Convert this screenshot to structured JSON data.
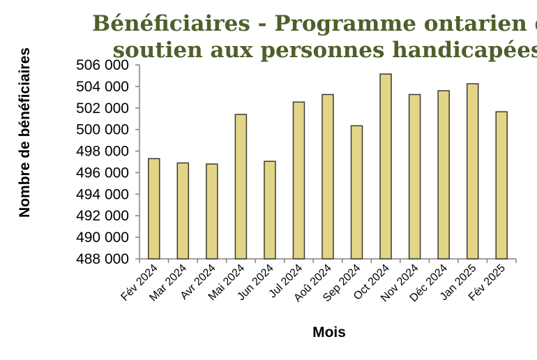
{
  "chart_data": {
    "type": "bar",
    "title_lines": [
      "Bénéficiaires - Programme ontarien de",
      "soutien aux personnes handicapées"
    ],
    "xlabel": "Mois",
    "ylabel": "Nombre de bénéficiaires",
    "categories": [
      "Fév 2024",
      "Mar 2024",
      "Avr 2024",
      "Mai 2024",
      "Jun 2024",
      "Jul 2024",
      "Aoû 2024",
      "Sep 2024",
      "Oct 2024",
      "Nov 2024",
      "Déc 2024",
      "Jan 2025",
      "Fév 2025"
    ],
    "values": [
      497300,
      496900,
      496800,
      501400,
      497050,
      502550,
      503250,
      500350,
      505150,
      503250,
      503600,
      504250,
      501650
    ],
    "ylim": [
      488000,
      506000
    ],
    "yticks": [
      488000,
      490000,
      492000,
      494000,
      496000,
      498000,
      500000,
      502000,
      504000,
      506000
    ],
    "ytick_labels": [
      "488 000",
      "490 000",
      "492 000",
      "494 000",
      "496 000",
      "498 000",
      "500 000",
      "502 000",
      "504 000",
      "506 000"
    ],
    "grid": false,
    "legend": "none",
    "colors": {
      "bar_fill": "#e3d587",
      "bar_stroke": "#3a3a30",
      "title": "#4f5f2c",
      "axis": "#808080"
    }
  }
}
